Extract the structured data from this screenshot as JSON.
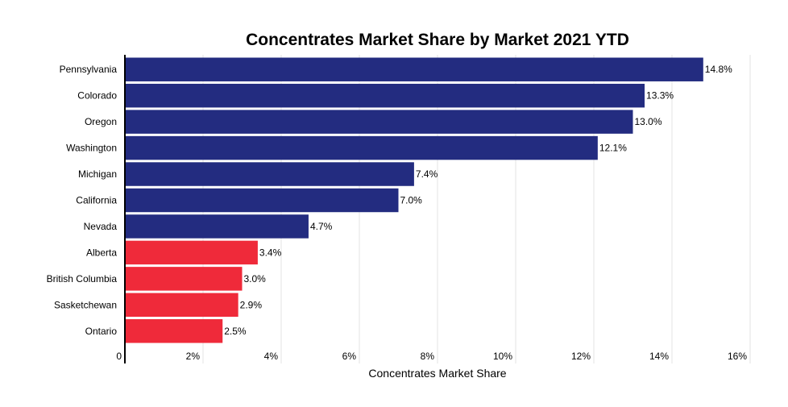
{
  "chart_data": {
    "type": "bar",
    "orientation": "horizontal",
    "title": "Concentrates Market Share by Market 2021 YTD",
    "xlabel": "Concentrates Market Share",
    "ylabel": "",
    "xlim": [
      0,
      16
    ],
    "x_ticks": [
      "0",
      "2%",
      "4%",
      "6%",
      "8%",
      "10%",
      "12%",
      "14%",
      "16%"
    ],
    "x_tick_values": [
      0,
      2,
      4,
      6,
      8,
      10,
      12,
      14,
      16
    ],
    "grid": "vertical",
    "categories": [
      "Pennsylvania",
      "Colorado",
      "Oregon",
      "Washington",
      "Michigan",
      "California",
      "Nevada",
      "Alberta",
      "British Columbia",
      "Sasketchewan",
      "Ontario"
    ],
    "values": [
      14.8,
      13.3,
      13.0,
      12.1,
      7.4,
      7.0,
      4.7,
      3.4,
      3.0,
      2.9,
      2.5
    ],
    "data_labels": [
      "14.8%",
      "13.3%",
      "13.0%",
      "12.1%",
      "7.4%",
      "7.0%",
      "4.7%",
      "3.4%",
      "3.0%",
      "2.9%",
      "2.5%"
    ],
    "bar_colors": [
      "#232c80",
      "#232c80",
      "#232c80",
      "#232c80",
      "#232c80",
      "#232c80",
      "#232c80",
      "#ef2a3a",
      "#ef2a3a",
      "#ef2a3a",
      "#ef2a3a"
    ]
  }
}
